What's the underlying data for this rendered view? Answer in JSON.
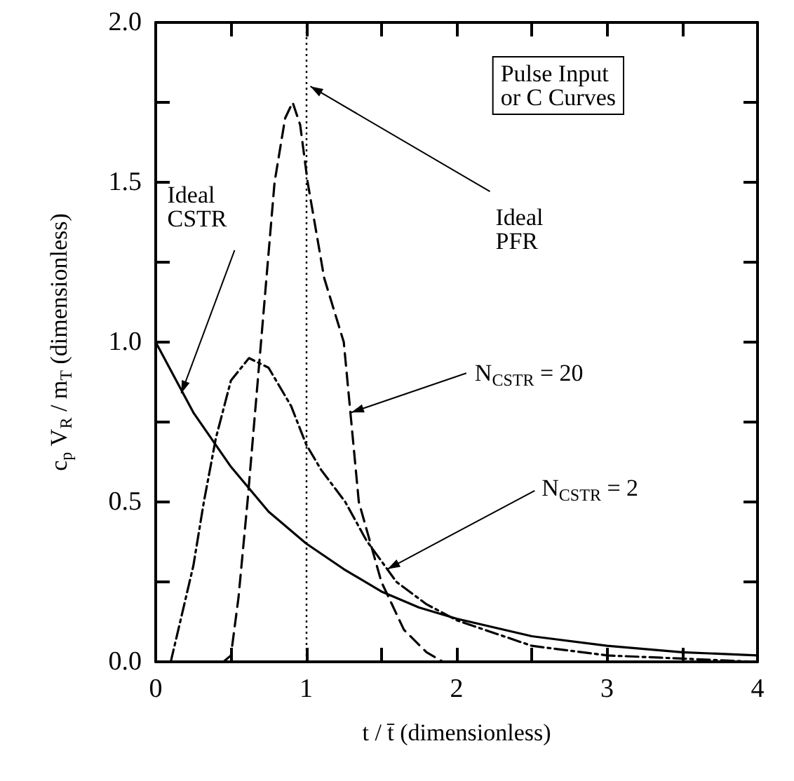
{
  "chart_data": {
    "type": "line",
    "xlabel": "t / t̄ (dimensionless)",
    "ylabel": "c$_{p}$ V$_{R}$ / m$_{T}$ (dimensionless)",
    "xlim": [
      0,
      4
    ],
    "xticks": [
      0,
      {
        "value": 0.5,
        "label": null
      },
      1,
      {
        "value": 1.5,
        "label": null
      },
      2,
      {
        "value": 2.5,
        "label": null
      },
      3,
      {
        "value": 3.5,
        "label": null
      },
      4
    ],
    "ylim": [
      0,
      2
    ],
    "yticks": [
      "0.0",
      {
        "value": 0.25,
        "label": null
      },
      {
        "value": 0.5,
        "label": "0.5"
      },
      {
        "value": 0.75,
        "label": null
      },
      {
        "value": 1,
        "label": "1.0"
      },
      {
        "value": 1.25,
        "label": null
      },
      {
        "value": 1.5,
        "label": "1.5"
      },
      {
        "value": 1.75,
        "label": null
      },
      {
        "value": 2,
        "label": "2.0"
      }
    ],
    "marker": "none",
    "series": [
      {
        "color": "#000000",
        "line_style": "solid",
        "x": [
          0,
          0.25,
          0.5,
          0.75,
          1,
          1.25,
          1.5,
          1.75,
          2,
          2.5,
          3,
          3.5,
          4
        ],
        "values": [
          1,
          0.78,
          0.61,
          0.47,
          0.37,
          0.29,
          0.22,
          0.17,
          0.135,
          0.08,
          0.05,
          0.03,
          0.02
        ]
      },
      {
        "color": "#000000",
        "line_style": "dashed",
        "x": [
          0.45,
          0.5,
          0.55,
          0.61,
          0.7,
          0.79,
          0.86,
          0.91,
          0.96,
          1.01,
          1.12,
          1.25,
          1.35,
          1.5,
          1.65,
          1.8,
          1.91
        ],
        "values": [
          0,
          0.02,
          0.2,
          0.5,
          1.0,
          1.5,
          1.7,
          1.75,
          1.68,
          1.5,
          1.2,
          1.0,
          0.5,
          0.25,
          0.1,
          0.03,
          0
        ]
      },
      {
        "color": "#000000",
        "line_style": "dashdot",
        "x": [
          0.1,
          0.15,
          0.25,
          0.32,
          0.4,
          0.5,
          0.62,
          0.75,
          0.9,
          1.0,
          1.1,
          1.26,
          1.4,
          1.6,
          1.8,
          2.0,
          2.5,
          3.0,
          3.5,
          4.0
        ],
        "values": [
          0,
          0.1,
          0.3,
          0.5,
          0.7,
          0.88,
          0.95,
          0.92,
          0.8,
          0.68,
          0.6,
          0.5,
          0.38,
          0.25,
          0.18,
          0.13,
          0.05,
          0.02,
          0.01,
          0
        ]
      }
    ],
    "ref_lines": [
      {
        "axis": "x",
        "value": 1,
        "label": "Ideal\nPFR",
        "line_style": "dotted",
        "color": "#000000"
      }
    ],
    "annotations": [
      "Pulse Input\nor C Curves",
      {
        "text": "Ideal\nCSTR",
        "x": 0.17,
        "y": 0.84
      },
      {
        "text": "N$_{CSTR}$ = 20",
        "x": 1.3,
        "y": 0.78
      },
      {
        "text": "N$_{CSTR}$ = 2",
        "x": 1.54,
        "y": 0.29
      }
    ]
  }
}
